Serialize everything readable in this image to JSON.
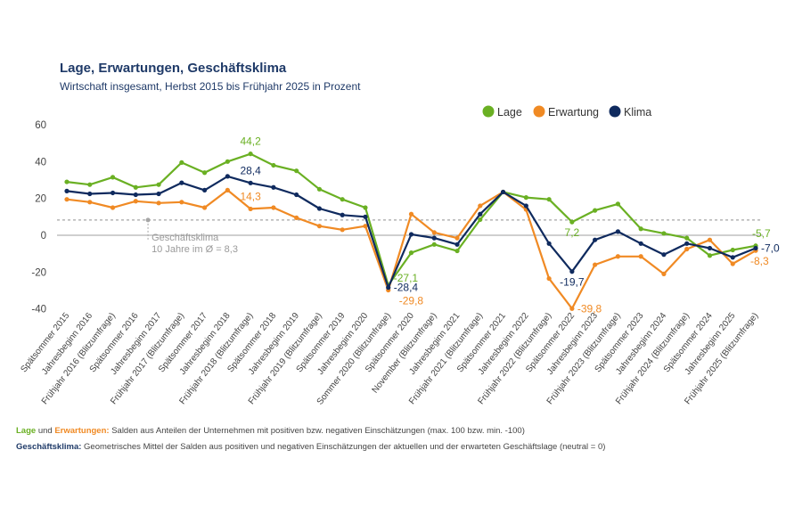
{
  "header": {
    "title": "Lage, Erwartungen, Geschäftsklima",
    "subtitle": "Wirtschaft insgesamt, Herbst 2015 bis Frühjahr 2025 in Prozent"
  },
  "colors": {
    "lage": "#6ab023",
    "erwartung": "#f08a24",
    "klima": "#0f2a5e",
    "reference": "#a6a6a6",
    "axis": "#7f7f7f"
  },
  "chart_data": {
    "type": "line",
    "title": "Lage, Erwartungen, Geschäftsklima",
    "ylim": [
      -40,
      60
    ],
    "yticks": [
      60,
      40,
      20,
      0,
      -20,
      -40
    ],
    "legend_position": "top-right",
    "categories": [
      "Spätsommer 2015",
      "Jahresbeginn 2016",
      "Frühjahr 2016 (Blitzumfrage)",
      "Spätsommer 2016",
      "Jahresbeginn 2017",
      "Frühjahr 2017 (Blitzumfrage)",
      "Spätsommer 2017",
      "Jahresbeginn 2018",
      "Frühjahr 2018 (Blitzumfrage)",
      "Spätsommer 2018",
      "Jahresbeginn 2019",
      "Frühjahr 2019 (Blitzumfrage)",
      "Spätsommer 2019",
      "Jahresbeginn 2020",
      "Sommer 2020 (Blitzumfrage)",
      "Spätsommer 2020",
      "November (Blitzumfrage)",
      "Jahresbeginn 2021",
      "Frühjahr 2021 (Blitzumfrage)",
      "Spätsommer 2021",
      "Jahresbeginn 2022",
      "Frühjahr 2022 (Blitzumfrage)",
      "Spätsommer 2022",
      "Jahresbeginn 2023",
      "Frühjahr 2023 (Blitzumfrage)",
      "Spätsommer 2023",
      "Jahresbeginn 2024",
      "Frühjahr 2024 (Blitzumfrage)",
      "Spätsommer 2024",
      "Jahresbeginn 2025",
      "Frühjahr 2025 (Blitzumfrage)"
    ],
    "series": [
      {
        "key": "lage",
        "name": "Lage",
        "values": [
          29,
          27.5,
          31.5,
          26,
          27.5,
          39.5,
          34,
          40,
          44.2,
          38,
          35,
          25,
          19.5,
          15,
          -27.1,
          -9.5,
          -5,
          -8.5,
          8.5,
          23.5,
          20.5,
          19.5,
          7.2,
          13.5,
          17,
          3.5,
          1,
          -1.5,
          -11,
          -8,
          -5.7
        ]
      },
      {
        "key": "erwartung",
        "name": "Erwartung",
        "values": [
          19.5,
          18,
          15,
          18.5,
          17.5,
          18,
          15,
          24.5,
          14.3,
          15,
          9.5,
          5,
          3,
          5,
          -29.8,
          11.5,
          1.5,
          -1.5,
          16,
          23.5,
          14,
          -23.5,
          -39.8,
          -16,
          -11.5,
          -11.5,
          -21,
          -7.5,
          -2.5,
          -15.5,
          -8.3
        ]
      },
      {
        "key": "klima",
        "name": "Klima",
        "values": [
          24,
          22.5,
          23,
          22,
          22.5,
          28.5,
          24.5,
          32,
          28.4,
          26,
          22,
          14.5,
          11,
          10,
          -28.4,
          0.5,
          -1.5,
          -5,
          11.5,
          23.5,
          16,
          -4.5,
          -19.7,
          -2.5,
          2,
          -4.5,
          -10.5,
          -4.5,
          -7,
          -12,
          -7.0
        ]
      }
    ],
    "reference_line": {
      "value": 8.3,
      "label_line1": "Geschäftsklima",
      "label_line2": "10 Jahre im Ø = 8,3",
      "anchor_index": 4
    },
    "annotations": [
      {
        "series": "lage",
        "index": 8,
        "text": "44,2",
        "pos": "above"
      },
      {
        "series": "klima",
        "index": 8,
        "text": "28,4",
        "pos": "above"
      },
      {
        "series": "erwartung",
        "index": 8,
        "text": "14,3",
        "pos": "above"
      },
      {
        "series": "lage",
        "index": 14,
        "text": "-27,1",
        "pos": "right-up"
      },
      {
        "series": "klima",
        "index": 14,
        "text": "-28,4",
        "pos": "right"
      },
      {
        "series": "erwartung",
        "index": 14,
        "text": "-29,8",
        "pos": "right-down"
      },
      {
        "series": "lage",
        "index": 22,
        "text": "7,2",
        "pos": "below"
      },
      {
        "series": "klima",
        "index": 22,
        "text": "-19,7",
        "pos": "below"
      },
      {
        "series": "erwartung",
        "index": 22,
        "text": "-39,8",
        "pos": "right"
      },
      {
        "series": "lage",
        "index": 30,
        "text": "-5,7",
        "pos": "top-right"
      },
      {
        "series": "klima",
        "index": 30,
        "text": "-7,0",
        "pos": "right"
      },
      {
        "series": "erwartung",
        "index": 30,
        "text": "-8,3",
        "pos": "bottom-right"
      }
    ]
  },
  "footnotes": {
    "line1_lage": "Lage",
    "line1_und": " und ",
    "line1_erw": "Erwartungen:",
    "line1_text": " Salden aus Anteilen der Unternehmen mit positiven bzw. negativen Einschätzungen (max. 100 bzw. min. -100)",
    "line2_label": "Geschäftsklima:",
    "line2_text": " Geometrisches Mittel der Salden aus positiven und negativen Einschätzungen der aktuellen und der erwarteten Geschäftslage (neutral = 0)"
  }
}
